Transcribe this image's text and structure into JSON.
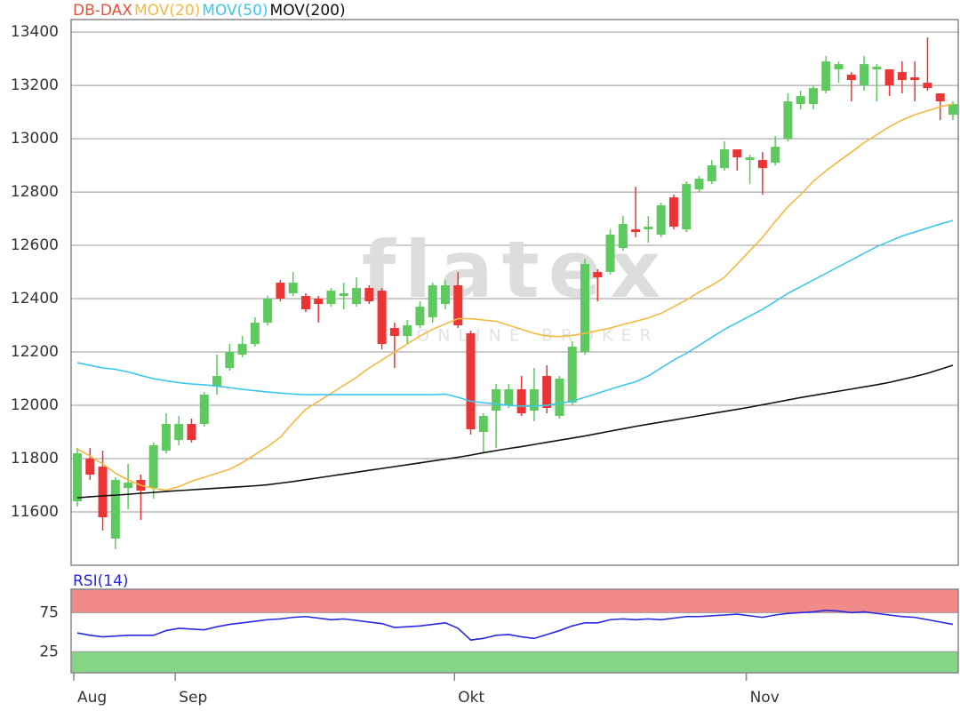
{
  "chart_data": [
    {
      "type": "candlestick",
      "name": "DB-DAX",
      "color": "#e8503c",
      "color_up": "#5ec95e",
      "color_down": "#ec3434",
      "watermark": [
        "flatex",
        "ONLINE BROKER"
      ],
      "categories": [
        "Aug",
        null,
        null,
        null,
        null,
        null,
        null,
        null,
        "Sep",
        null,
        null,
        null,
        null,
        null,
        null,
        null,
        null,
        null,
        null,
        null,
        null,
        null,
        null,
        null,
        null,
        null,
        null,
        null,
        null,
        null,
        "Okt",
        null,
        null,
        null,
        null,
        null,
        null,
        null,
        null,
        null,
        null,
        null,
        null,
        null,
        null,
        null,
        null,
        null,
        null,
        null,
        null,
        null,
        null,
        "Nov",
        null,
        null,
        null,
        null,
        null,
        null,
        null,
        null,
        null,
        null,
        null,
        null,
        null,
        null,
        null,
        null
      ],
      "open": [
        11640,
        11800,
        11770,
        11500,
        11690,
        11720,
        11690,
        11830,
        11870,
        11930,
        11930,
        12070,
        12140,
        12190,
        12230,
        12310,
        12460,
        12420,
        12410,
        12400,
        12380,
        12410,
        12380,
        12440,
        12430,
        12290,
        12260,
        12300,
        12330,
        12380,
        12450,
        12270,
        11900,
        11980,
        12000,
        12060,
        11980,
        12110,
        11960,
        12010,
        12200,
        12500,
        12500,
        12590,
        12660,
        12660,
        12640,
        12780,
        12660,
        12810,
        12840,
        12890,
        12960,
        12920,
        12920,
        12910,
        13000,
        13130,
        13130,
        13180,
        13260,
        13240,
        13200,
        13260,
        13260,
        13250,
        13230,
        13210,
        13170,
        13090
      ],
      "high": [
        11840,
        11840,
        11830,
        11730,
        11780,
        11740,
        11860,
        11970,
        11960,
        11950,
        12050,
        12190,
        12230,
        12260,
        12330,
        12410,
        12470,
        12500,
        12420,
        12410,
        12440,
        12460,
        12480,
        12450,
        12440,
        12310,
        12320,
        12390,
        12460,
        12470,
        12500,
        12280,
        11970,
        12080,
        12080,
        12110,
        12140,
        12150,
        12110,
        12240,
        12550,
        12510,
        12660,
        12710,
        12820,
        12710,
        12760,
        12790,
        12840,
        12860,
        12920,
        12990,
        12960,
        12940,
        12950,
        13010,
        13170,
        13180,
        13200,
        13310,
        13290,
        13250,
        13310,
        13280,
        13260,
        13290,
        13290,
        13380,
        13170,
        13140
      ],
      "low": [
        11620,
        11720,
        11530,
        11460,
        11610,
        11570,
        11650,
        11820,
        11850,
        11860,
        11920,
        12040,
        12130,
        12180,
        12220,
        12300,
        12390,
        12410,
        12350,
        12310,
        12370,
        12360,
        12370,
        12380,
        12210,
        12140,
        12230,
        12290,
        12310,
        12360,
        12290,
        11890,
        11820,
        11840,
        11990,
        11960,
        11940,
        11970,
        11950,
        12000,
        12190,
        12390,
        12490,
        12580,
        12630,
        12610,
        12630,
        12660,
        12650,
        12800,
        12830,
        12880,
        12880,
        12830,
        12790,
        12900,
        12990,
        13110,
        13110,
        13170,
        13210,
        13140,
        13180,
        13140,
        13160,
        13170,
        13140,
        13180,
        13070,
        13070
      ],
      "close": [
        11820,
        11740,
        11580,
        11720,
        11710,
        11680,
        11850,
        11930,
        11930,
        11870,
        12040,
        12110,
        12200,
        12230,
        12310,
        12400,
        12400,
        12460,
        12360,
        12380,
        12430,
        12420,
        12440,
        12390,
        12230,
        12260,
        12300,
        12370,
        12450,
        12450,
        12300,
        11910,
        11960,
        12060,
        12060,
        11970,
        12060,
        11990,
        12100,
        12220,
        12530,
        12480,
        12640,
        12680,
        12650,
        12670,
        12750,
        12670,
        12830,
        12850,
        12900,
        12960,
        12930,
        12930,
        12890,
        12970,
        13140,
        13160,
        13190,
        13290,
        13280,
        13220,
        13280,
        13270,
        13200,
        13220,
        13220,
        13190,
        13140,
        13130
      ],
      "overlays": [
        {
          "name": "MOV(20)",
          "color": "#f5b841",
          "values": [
            11836,
            11810,
            11780,
            11745,
            11720,
            11700,
            11688,
            11682,
            11695,
            11715,
            11730,
            11745,
            11760,
            11785,
            11815,
            11845,
            11880,
            11935,
            11985,
            12015,
            12045,
            12075,
            12105,
            12140,
            12170,
            12200,
            12230,
            12260,
            12285,
            12305,
            12325,
            12325,
            12320,
            12315,
            12300,
            12285,
            12270,
            12260,
            12258,
            12262,
            12270,
            12280,
            12290,
            12303,
            12315,
            12328,
            12345,
            12370,
            12395,
            12425,
            12450,
            12480,
            12530,
            12580,
            12630,
            12690,
            12745,
            12790,
            12840,
            12880,
            12915,
            12950,
            12985,
            13015,
            13045,
            13070,
            13090,
            13105,
            13120,
            13130
          ]
        },
        {
          "name": "MOV(50)",
          "color": "#3cc8ee",
          "values": [
            12160,
            12150,
            12140,
            12135,
            12125,
            12112,
            12100,
            12092,
            12085,
            12080,
            12077,
            12072,
            12066,
            12060,
            12055,
            12050,
            12046,
            12042,
            12040,
            12040,
            12040,
            12040,
            12040,
            12040,
            12040,
            12040,
            12040,
            12040,
            12040,
            12042,
            12030,
            12015,
            12010,
            12005,
            12000,
            11997,
            11997,
            12000,
            12008,
            12015,
            12030,
            12045,
            12060,
            12075,
            12088,
            12110,
            12140,
            12170,
            12195,
            12225,
            12255,
            12285,
            12310,
            12335,
            12360,
            12390,
            12420,
            12445,
            12470,
            12495,
            12520,
            12545,
            12570,
            12595,
            12615,
            12635,
            12650,
            12665,
            12680,
            12693
          ]
        },
        {
          "name": "MOV(200)",
          "color": "#111111",
          "values": [
            11653,
            11657,
            11660,
            11663,
            11666,
            11670,
            11673,
            11677,
            11680,
            11683,
            11686,
            11689,
            11692,
            11695,
            11698,
            11702,
            11708,
            11714,
            11721,
            11728,
            11735,
            11742,
            11749,
            11756,
            11763,
            11770,
            11777,
            11784,
            11791,
            11798,
            11805,
            11813,
            11822,
            11830,
            11838,
            11845,
            11853,
            11861,
            11869,
            11877,
            11885,
            11894,
            11903,
            11912,
            11921,
            11929,
            11937,
            11945,
            11953,
            11961,
            11969,
            11977,
            11985,
            11993,
            12002,
            12011,
            12020,
            12029,
            12037,
            12045,
            12053,
            12061,
            12069,
            12077,
            12086,
            12097,
            12108,
            12120,
            12135,
            12150
          ]
        }
      ],
      "ylim": [
        11400,
        13447
      ],
      "yticks": [
        11600,
        11800,
        12000,
        12200,
        12400,
        12600,
        12800,
        13000,
        13200,
        13400
      ],
      "grid": true
    },
    {
      "type": "line",
      "title": "RSI(14)",
      "color": "#2828e0",
      "values": [
        49,
        46,
        44,
        45,
        46,
        46,
        46,
        52,
        55,
        54,
        53,
        57,
        60,
        62,
        64,
        66,
        67,
        69,
        70,
        68,
        66,
        67,
        65,
        63,
        61,
        56,
        57,
        58,
        60,
        62,
        55,
        40,
        42,
        46,
        47,
        44,
        42,
        47,
        52,
        58,
        62,
        62,
        66,
        67,
        66,
        67,
        66,
        68,
        70,
        70,
        71,
        72,
        73,
        71,
        69,
        72,
        74,
        75,
        76,
        78,
        77,
        75,
        76,
        74,
        72,
        70,
        69,
        66,
        63,
        60
      ],
      "zones": [
        {
          "from": 75,
          "to": 105,
          "color": "#f28a8a"
        },
        {
          "from": -2,
          "to": 25,
          "color": "#86d486"
        }
      ],
      "ylim": [
        -2,
        105
      ],
      "yticks": [
        25,
        75
      ],
      "grid": true
    }
  ]
}
